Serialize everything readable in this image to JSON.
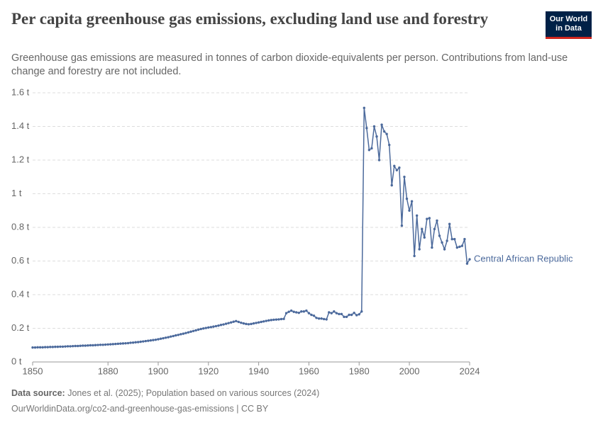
{
  "logo": "Our World in Data",
  "chart_data": {
    "type": "line",
    "title": "Per capita greenhouse gas emissions, excluding land use and forestry",
    "subtitle": "Greenhouse gas emissions are measured in tonnes of carbon dioxide-equivalents per person. Contributions from land-use change and forestry are not included.",
    "source_label": "Data source:",
    "source": "Jones et al. (2025); Population based on various sources (2024)",
    "url": "OurWorldinData.org/co2-and-greenhouse-gas-emissions | CC BY",
    "x": [
      1850,
      1851,
      1852,
      1853,
      1854,
      1855,
      1856,
      1857,
      1858,
      1859,
      1860,
      1861,
      1862,
      1863,
      1864,
      1865,
      1866,
      1867,
      1868,
      1869,
      1870,
      1871,
      1872,
      1873,
      1874,
      1875,
      1876,
      1877,
      1878,
      1879,
      1880,
      1881,
      1882,
      1883,
      1884,
      1885,
      1886,
      1887,
      1888,
      1889,
      1890,
      1891,
      1892,
      1893,
      1894,
      1895,
      1896,
      1897,
      1898,
      1899,
      1900,
      1901,
      1902,
      1903,
      1904,
      1905,
      1906,
      1907,
      1908,
      1909,
      1910,
      1911,
      1912,
      1913,
      1914,
      1915,
      1916,
      1917,
      1918,
      1919,
      1920,
      1921,
      1922,
      1923,
      1924,
      1925,
      1926,
      1927,
      1928,
      1929,
      1930,
      1931,
      1932,
      1933,
      1934,
      1935,
      1936,
      1937,
      1938,
      1939,
      1940,
      1941,
      1942,
      1943,
      1944,
      1945,
      1946,
      1947,
      1948,
      1949,
      1950,
      1951,
      1952,
      1953,
      1954,
      1955,
      1956,
      1957,
      1958,
      1959,
      1960,
      1961,
      1962,
      1963,
      1964,
      1965,
      1966,
      1967,
      1968,
      1969,
      1970,
      1971,
      1972,
      1973,
      1974,
      1975,
      1976,
      1977,
      1978,
      1979,
      1980,
      1981,
      1982,
      1983,
      1984,
      1985,
      1986,
      1987,
      1988,
      1989,
      1990,
      1991,
      1992,
      1993,
      1994,
      1995,
      1996,
      1997,
      1998,
      1999,
      2000,
      2001,
      2002,
      2003,
      2004,
      2005,
      2006,
      2007,
      2008,
      2009,
      2010,
      2011,
      2012,
      2013,
      2014,
      2015,
      2016,
      2017,
      2018,
      2019,
      2020,
      2021,
      2022,
      2023,
      2024
    ],
    "series": [
      {
        "name": "Central African Republic",
        "color": "#4c6a9c",
        "values": [
          0.086,
          0.086,
          0.087,
          0.087,
          0.087,
          0.088,
          0.088,
          0.089,
          0.089,
          0.09,
          0.09,
          0.091,
          0.091,
          0.092,
          0.093,
          0.093,
          0.094,
          0.095,
          0.095,
          0.096,
          0.097,
          0.097,
          0.098,
          0.099,
          0.099,
          0.1,
          0.101,
          0.102,
          0.102,
          0.103,
          0.104,
          0.105,
          0.106,
          0.107,
          0.108,
          0.109,
          0.11,
          0.111,
          0.112,
          0.114,
          0.115,
          0.117,
          0.118,
          0.12,
          0.122,
          0.124,
          0.126,
          0.128,
          0.13,
          0.132,
          0.135,
          0.138,
          0.141,
          0.144,
          0.147,
          0.151,
          0.154,
          0.158,
          0.161,
          0.165,
          0.168,
          0.172,
          0.176,
          0.18,
          0.184,
          0.188,
          0.192,
          0.196,
          0.199,
          0.202,
          0.205,
          0.207,
          0.21,
          0.213,
          0.216,
          0.22,
          0.223,
          0.227,
          0.231,
          0.235,
          0.239,
          0.243,
          0.238,
          0.233,
          0.229,
          0.226,
          0.224,
          0.226,
          0.229,
          0.232,
          0.235,
          0.238,
          0.241,
          0.244,
          0.247,
          0.249,
          0.251,
          0.252,
          0.253,
          0.255,
          0.256,
          0.29,
          0.298,
          0.305,
          0.298,
          0.295,
          0.292,
          0.3,
          0.3,
          0.305,
          0.29,
          0.28,
          0.275,
          0.262,
          0.258,
          0.258,
          0.255,
          0.253,
          0.295,
          0.29,
          0.3,
          0.29,
          0.285,
          0.285,
          0.268,
          0.268,
          0.28,
          0.28,
          0.292,
          0.278,
          0.283,
          0.3,
          1.51,
          1.39,
          1.26,
          1.27,
          1.4,
          1.34,
          1.2,
          1.41,
          1.37,
          1.355,
          1.29,
          1.05,
          1.165,
          1.14,
          1.155,
          0.81,
          1.1,
          0.97,
          0.9,
          0.955,
          0.63,
          0.87,
          0.67,
          0.79,
          0.74,
          0.85,
          0.855,
          0.68,
          0.79,
          0.84,
          0.75,
          0.71,
          0.67,
          0.72,
          0.82,
          0.73,
          0.73,
          0.68,
          0.685,
          0.69,
          0.73,
          0.585,
          0.61
        ]
      }
    ],
    "xlim": [
      1850,
      2024
    ],
    "xticks": [
      1850,
      1880,
      1900,
      1920,
      1940,
      1960,
      1980,
      2000,
      2024
    ],
    "ylim": [
      0,
      1.6
    ],
    "yticks": [
      {
        "value": 0,
        "label": "0 t"
      },
      {
        "value": 0.2,
        "label": "0.2 t"
      },
      {
        "value": 0.4,
        "label": "0.4 t"
      },
      {
        "value": 0.6,
        "label": "0.6 t"
      },
      {
        "value": 0.8,
        "label": "0.8 t"
      },
      {
        "value": 1,
        "label": "1 t"
      },
      {
        "value": 1.2,
        "label": "1.2 t"
      },
      {
        "value": 1.4,
        "label": "1.4 t"
      },
      {
        "value": 1.6,
        "label": "1.6 t"
      }
    ],
    "grid": true
  }
}
